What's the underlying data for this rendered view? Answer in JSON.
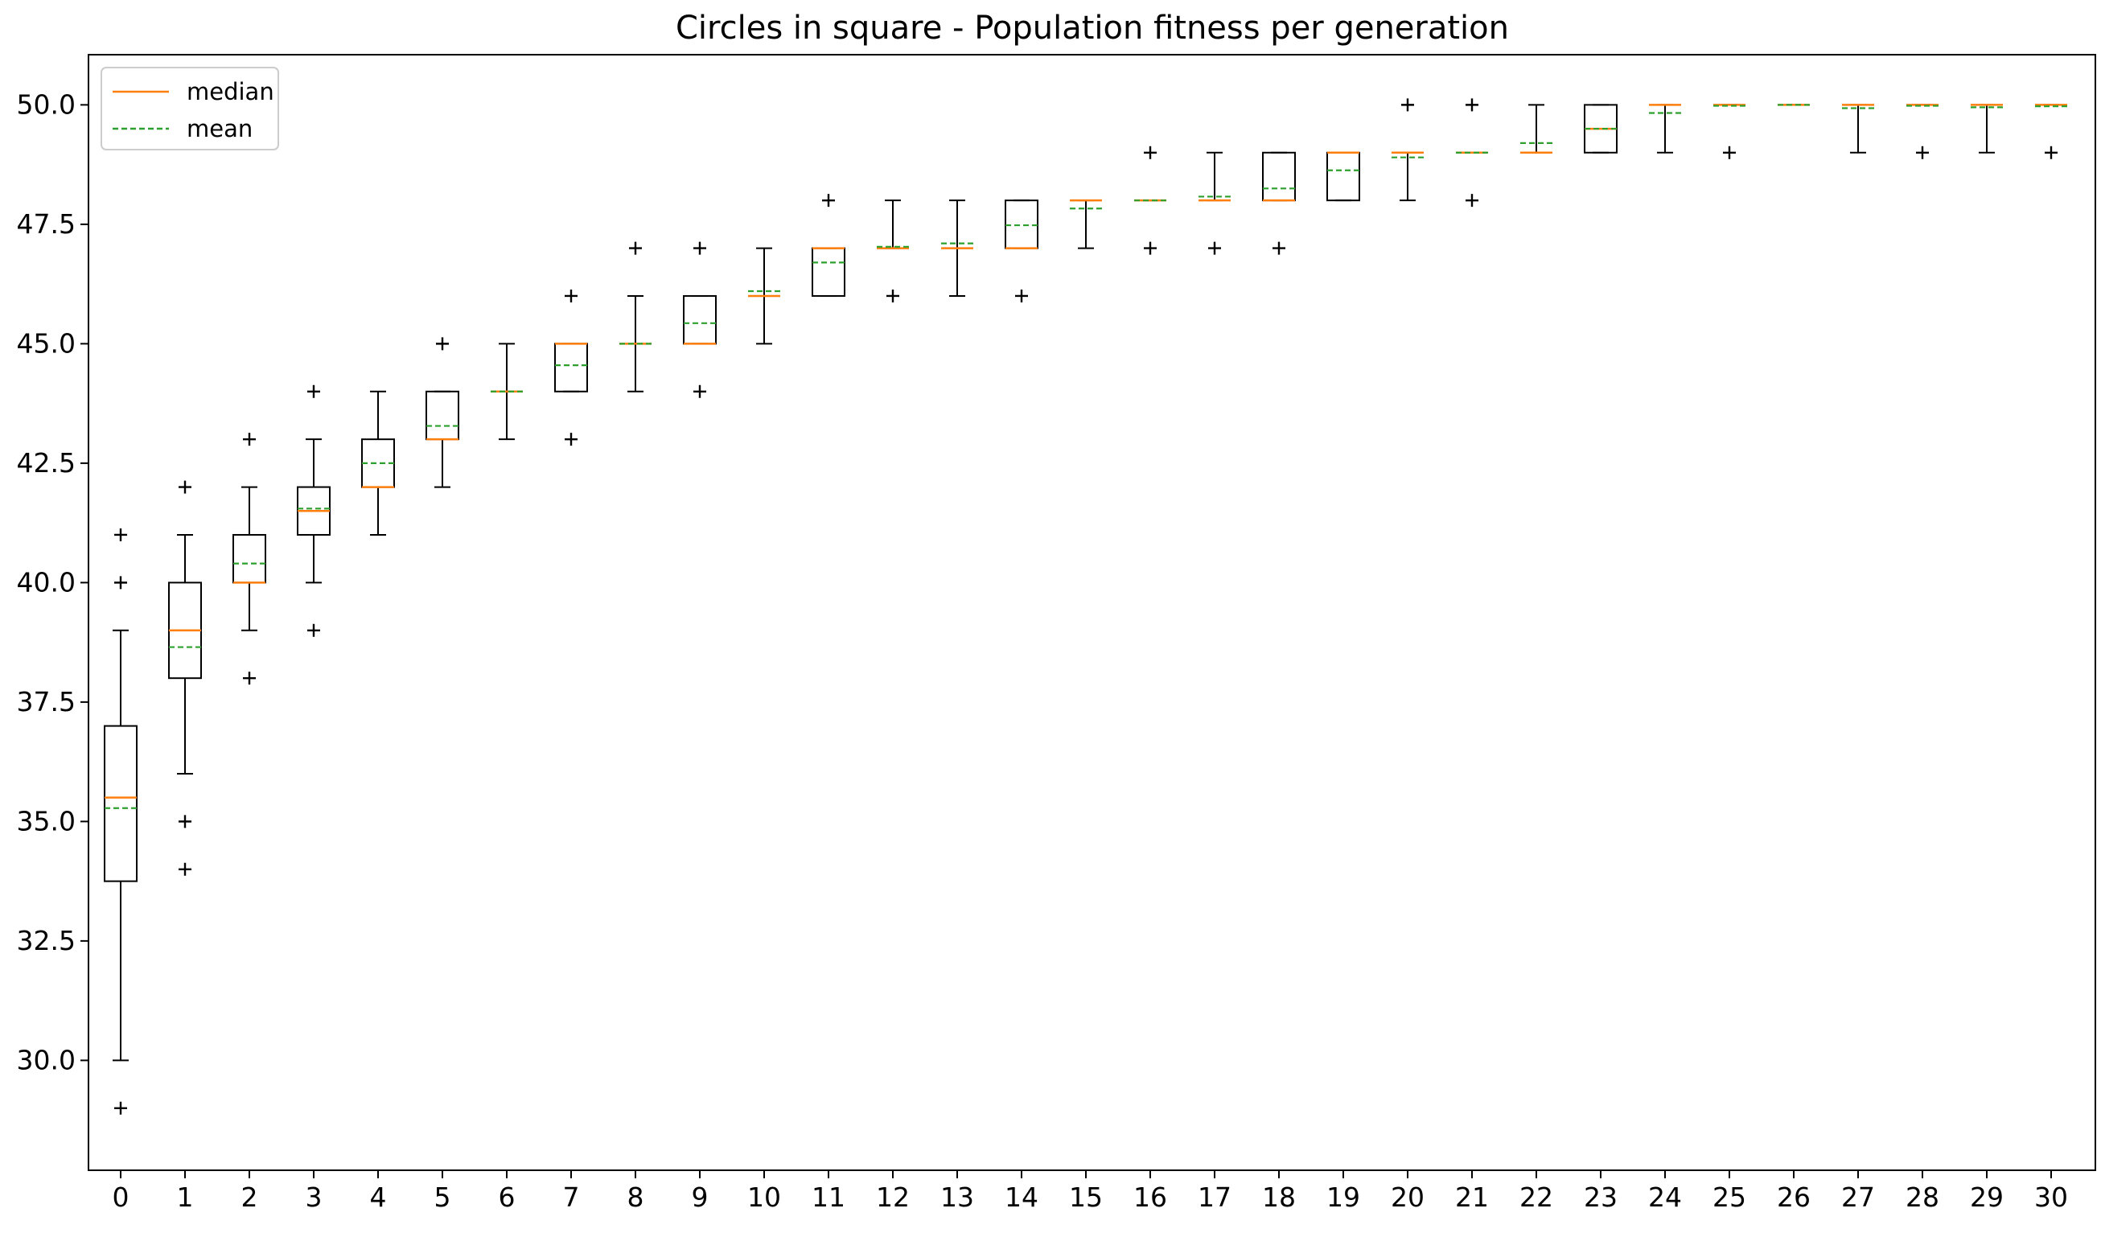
{
  "chart_data": {
    "type": "boxplot",
    "title": "Circles in square - Population fitness per generation",
    "xlabel": "",
    "ylabel": "",
    "categories": [
      "0",
      "1",
      "2",
      "3",
      "4",
      "5",
      "6",
      "7",
      "8",
      "9",
      "10",
      "11",
      "12",
      "13",
      "14",
      "15",
      "16",
      "17",
      "18",
      "19",
      "20",
      "21",
      "22",
      "23",
      "24",
      "25",
      "26",
      "27",
      "28",
      "29",
      "30"
    ],
    "ylim": [
      27.7,
      51.05
    ],
    "yticks": [
      30.0,
      32.5,
      35.0,
      37.5,
      40.0,
      42.5,
      45.0,
      47.5,
      50.0
    ],
    "ytick_labels": [
      "30.0",
      "32.5",
      "35.0",
      "37.5",
      "40.0",
      "42.5",
      "45.0",
      "47.5",
      "50.0"
    ],
    "grid": false,
    "legend_position": "top-left",
    "legend": [
      {
        "label": "median",
        "color": "#ff7f0e",
        "style": "solid"
      },
      {
        "label": "mean",
        "color": "#2ca02c",
        "style": "dashed"
      }
    ],
    "colors": {
      "median": "#ff7f0e",
      "mean": "#2ca02c",
      "box": "#000000"
    },
    "boxes": [
      {
        "gen": 0,
        "whislo": 30,
        "q1": 33.75,
        "med": 35.5,
        "q3": 37,
        "whishi": 39,
        "mean": 35.28,
        "fliers": [
          29,
          40,
          41
        ]
      },
      {
        "gen": 1,
        "whislo": 36,
        "q1": 38,
        "med": 39,
        "q3": 40,
        "whishi": 41,
        "mean": 38.65,
        "fliers": [
          34,
          35,
          42
        ]
      },
      {
        "gen": 2,
        "whislo": 39,
        "q1": 40,
        "med": 40,
        "q3": 41,
        "whishi": 42,
        "mean": 40.4,
        "fliers": [
          38,
          43
        ]
      },
      {
        "gen": 3,
        "whislo": 40,
        "q1": 41,
        "med": 41.5,
        "q3": 42,
        "whishi": 43,
        "mean": 41.55,
        "fliers": [
          39,
          44
        ]
      },
      {
        "gen": 4,
        "whislo": 41,
        "q1": 42,
        "med": 42,
        "q3": 43,
        "whishi": 44,
        "mean": 42.5,
        "fliers": []
      },
      {
        "gen": 5,
        "whislo": 42,
        "q1": 43,
        "med": 43,
        "q3": 44,
        "whishi": 44,
        "mean": 43.28,
        "fliers": [
          45
        ]
      },
      {
        "gen": 6,
        "whislo": 43,
        "q1": 44,
        "med": 44,
        "q3": 44,
        "whishi": 45,
        "mean": 44.0,
        "fliers": []
      },
      {
        "gen": 7,
        "whislo": 44,
        "q1": 44,
        "med": 45,
        "q3": 45,
        "whishi": 45,
        "mean": 44.55,
        "fliers": [
          43,
          46
        ]
      },
      {
        "gen": 8,
        "whislo": 44,
        "q1": 45,
        "med": 45,
        "q3": 45,
        "whishi": 46,
        "mean": 45.0,
        "fliers": [
          47
        ]
      },
      {
        "gen": 9,
        "whislo": 45,
        "q1": 45,
        "med": 45,
        "q3": 46,
        "whishi": 46,
        "mean": 45.43,
        "fliers": [
          44,
          47
        ]
      },
      {
        "gen": 10,
        "whislo": 45,
        "q1": 46,
        "med": 46,
        "q3": 46,
        "whishi": 47,
        "mean": 46.1,
        "fliers": []
      },
      {
        "gen": 11,
        "whislo": 46,
        "q1": 46,
        "med": 47,
        "q3": 47,
        "whishi": 47,
        "mean": 46.7,
        "fliers": [
          48
        ]
      },
      {
        "gen": 12,
        "whislo": 47,
        "q1": 47,
        "med": 47,
        "q3": 47,
        "whishi": 48,
        "mean": 47.03,
        "fliers": [
          46
        ]
      },
      {
        "gen": 13,
        "whislo": 46,
        "q1": 47,
        "med": 47,
        "q3": 47,
        "whishi": 48,
        "mean": 47.1,
        "fliers": []
      },
      {
        "gen": 14,
        "whislo": 47,
        "q1": 47,
        "med": 47,
        "q3": 48,
        "whishi": 48,
        "mean": 47.48,
        "fliers": [
          46
        ]
      },
      {
        "gen": 15,
        "whislo": 47,
        "q1": 48,
        "med": 48,
        "q3": 48,
        "whishi": 48,
        "mean": 47.83,
        "fliers": []
      },
      {
        "gen": 16,
        "whislo": 48,
        "q1": 48,
        "med": 48,
        "q3": 48,
        "whishi": 48,
        "mean": 48.0,
        "fliers": [
          47,
          49
        ]
      },
      {
        "gen": 17,
        "whislo": 48,
        "q1": 48,
        "med": 48,
        "q3": 48,
        "whishi": 49,
        "mean": 48.08,
        "fliers": [
          47
        ]
      },
      {
        "gen": 18,
        "whislo": 48,
        "q1": 48,
        "med": 48,
        "q3": 49,
        "whishi": 49,
        "mean": 48.25,
        "fliers": [
          47
        ]
      },
      {
        "gen": 19,
        "whislo": 48,
        "q1": 48,
        "med": 49,
        "q3": 49,
        "whishi": 49,
        "mean": 48.63,
        "fliers": []
      },
      {
        "gen": 20,
        "whislo": 48,
        "q1": 49,
        "med": 49,
        "q3": 49,
        "whishi": 49,
        "mean": 48.9,
        "fliers": [
          50
        ]
      },
      {
        "gen": 21,
        "whislo": 49,
        "q1": 49,
        "med": 49,
        "q3": 49,
        "whishi": 49,
        "mean": 49.0,
        "fliers": [
          48,
          50
        ]
      },
      {
        "gen": 22,
        "whislo": 49,
        "q1": 49,
        "med": 49,
        "q3": 49,
        "whishi": 50,
        "mean": 49.2,
        "fliers": []
      },
      {
        "gen": 23,
        "whislo": 49,
        "q1": 49,
        "med": 49.5,
        "q3": 50,
        "whishi": 50,
        "mean": 49.5,
        "fliers": []
      },
      {
        "gen": 24,
        "whislo": 49,
        "q1": 50,
        "med": 50,
        "q3": 50,
        "whishi": 50,
        "mean": 49.83,
        "fliers": []
      },
      {
        "gen": 25,
        "whislo": 50,
        "q1": 50,
        "med": 50,
        "q3": 50,
        "whishi": 50,
        "mean": 49.98,
        "fliers": [
          49
        ]
      },
      {
        "gen": 26,
        "whislo": 50,
        "q1": 50,
        "med": 50,
        "q3": 50,
        "whishi": 50,
        "mean": 50.0,
        "fliers": []
      },
      {
        "gen": 27,
        "whislo": 49,
        "q1": 50,
        "med": 50,
        "q3": 50,
        "whishi": 50,
        "mean": 49.93,
        "fliers": []
      },
      {
        "gen": 28,
        "whislo": 50,
        "q1": 50,
        "med": 50,
        "q3": 50,
        "whishi": 50,
        "mean": 49.98,
        "fliers": [
          49
        ]
      },
      {
        "gen": 29,
        "whislo": 49,
        "q1": 50,
        "med": 50,
        "q3": 50,
        "whishi": 50,
        "mean": 49.95,
        "fliers": []
      },
      {
        "gen": 30,
        "whislo": 50,
        "q1": 50,
        "med": 50,
        "q3": 50,
        "whishi": 50,
        "mean": 49.97,
        "fliers": [
          49
        ]
      }
    ]
  }
}
